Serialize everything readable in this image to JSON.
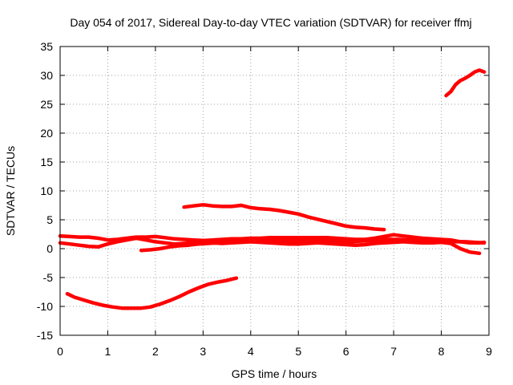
{
  "chart_data": {
    "type": "line",
    "title": "Day 054 of 2017, Sidereal Day-to-day VTEC variation (SDTVAR) for receiver ffmj",
    "xlabel": "GPS time / hours",
    "ylabel": "SDTVAR / TECUs",
    "xlim": [
      0,
      9
    ],
    "ylim": [
      -15,
      35
    ],
    "xticks": [
      0,
      1,
      2,
      3,
      4,
      5,
      6,
      7,
      8,
      9
    ],
    "yticks": [
      -15,
      -10,
      -5,
      0,
      5,
      10,
      15,
      20,
      25,
      30,
      35
    ],
    "grid": true,
    "legend": "none",
    "color": "#ff0000",
    "series": [
      {
        "x": [
          0.15,
          0.3,
          0.5,
          0.7,
          0.9,
          1.1,
          1.3,
          1.5,
          1.7,
          1.9,
          2.1,
          2.3,
          2.5,
          2.7,
          2.9,
          3.1,
          3.3,
          3.5,
          3.7
        ],
        "y": [
          -7.8,
          -8.4,
          -8.9,
          -9.4,
          -9.8,
          -10.1,
          -10.3,
          -10.3,
          -10.3,
          -10.1,
          -9.6,
          -9.0,
          -8.3,
          -7.5,
          -6.8,
          -6.2,
          -5.8,
          -5.5,
          -5.1
        ]
      },
      {
        "x": [
          2.6,
          2.8,
          3.0,
          3.2,
          3.4,
          3.6,
          3.8,
          4.0,
          4.2,
          4.4,
          4.6,
          4.8,
          5.0,
          5.2,
          5.4,
          5.6,
          5.8,
          6.0,
          6.2,
          6.4,
          6.6,
          6.8
        ],
        "y": [
          7.2,
          7.4,
          7.6,
          7.4,
          7.3,
          7.3,
          7.5,
          7.1,
          6.9,
          6.8,
          6.6,
          6.3,
          6.0,
          5.5,
          5.1,
          4.7,
          4.3,
          3.9,
          3.7,
          3.6,
          3.4,
          3.3
        ]
      },
      {
        "x": [
          8.1,
          8.2,
          8.3,
          8.4,
          8.5,
          8.6,
          8.7,
          8.8,
          8.9
        ],
        "y": [
          26.5,
          27.2,
          28.4,
          29.1,
          29.5,
          30.0,
          30.6,
          30.9,
          30.6
        ]
      },
      {
        "x": [
          0.0,
          0.2,
          0.4,
          0.6,
          0.8,
          1.0,
          1.2,
          1.4,
          1.6,
          1.8,
          2.0,
          2.2,
          2.4,
          2.6,
          2.8,
          3.0,
          3.2,
          3.4,
          3.6,
          3.8,
          4.0,
          4.2,
          4.4,
          4.6,
          4.8,
          5.0,
          5.2,
          5.4,
          5.6,
          5.8,
          6.0,
          6.2,
          6.4,
          6.6,
          6.8,
          7.0,
          7.2,
          7.4,
          7.6,
          7.8,
          8.0,
          8.2,
          8.4,
          8.6,
          8.8,
          8.9
        ],
        "y": [
          2.2,
          2.1,
          2.0,
          2.0,
          1.8,
          1.5,
          1.6,
          1.8,
          2.0,
          2.0,
          2.1,
          1.9,
          1.7,
          1.6,
          1.5,
          1.4,
          1.5,
          1.6,
          1.7,
          1.7,
          1.8,
          1.8,
          1.9,
          1.9,
          1.9,
          1.9,
          1.9,
          1.9,
          1.9,
          1.8,
          1.7,
          1.6,
          1.6,
          1.8,
          2.1,
          2.4,
          2.2,
          2.0,
          1.8,
          1.7,
          1.6,
          1.5,
          1.2,
          1.0,
          1.0,
          1.1
        ]
      },
      {
        "x": [
          0.0,
          0.2,
          0.4,
          0.6,
          0.8,
          1.0,
          1.2,
          1.4,
          1.6,
          1.8,
          2.0,
          2.2,
          2.4,
          2.6,
          2.8,
          3.0,
          3.2,
          3.4,
          3.6,
          3.8,
          4.0,
          4.2,
          4.4,
          4.6,
          4.8,
          5.0,
          5.2,
          5.4,
          5.6,
          5.8,
          6.0,
          6.2,
          6.4,
          6.6,
          6.8,
          7.0,
          7.2,
          7.4,
          7.6,
          7.8,
          8.0,
          8.2,
          8.4,
          8.6,
          8.8
        ],
        "y": [
          1.0,
          0.8,
          0.6,
          0.4,
          0.3,
          0.8,
          1.2,
          1.5,
          1.8,
          1.5,
          1.2,
          1.0,
          0.8,
          0.9,
          1.0,
          1.1,
          1.0,
          0.9,
          1.0,
          1.1,
          1.2,
          1.1,
          1.0,
          0.9,
          0.8,
          0.8,
          0.9,
          1.0,
          0.9,
          0.8,
          0.7,
          0.6,
          0.7,
          0.9,
          1.0,
          1.1,
          1.2,
          1.1,
          1.0,
          1.0,
          1.1,
          0.9,
          0.0,
          -0.6,
          -0.8
        ]
      },
      {
        "x": [
          1.7,
          1.9,
          2.1,
          2.3,
          2.5,
          2.7,
          2.9,
          3.1,
          3.3,
          3.5,
          3.7,
          3.9,
          4.1,
          4.3,
          4.5,
          4.7,
          4.9,
          5.1,
          5.3,
          5.5,
          5.7,
          5.9,
          6.1,
          6.3,
          6.5,
          6.7,
          6.9,
          7.1,
          7.3,
          7.5,
          7.7,
          7.9,
          8.1,
          8.3,
          8.5,
          8.7,
          8.9
        ],
        "y": [
          -0.3,
          -0.2,
          0.0,
          0.3,
          0.5,
          0.6,
          0.8,
          0.9,
          1.0,
          1.1,
          1.1,
          1.2,
          1.2,
          1.3,
          1.3,
          1.3,
          1.4,
          1.4,
          1.4,
          1.4,
          1.3,
          1.3,
          1.2,
          1.3,
          1.4,
          1.5,
          1.6,
          1.6,
          1.5,
          1.5,
          1.4,
          1.4,
          1.3,
          1.2,
          1.2,
          1.1,
          1.0
        ]
      }
    ]
  }
}
